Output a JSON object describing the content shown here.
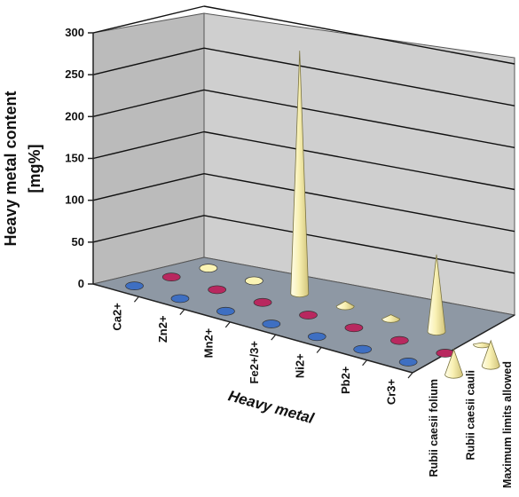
{
  "chart_data": {
    "type": "bar",
    "bar_shape": "cone-3d",
    "ylabel_line1": "Heavy metal content",
    "ylabel_line2": "[mg%]",
    "xlabel": "Heavy metal",
    "ylim": [
      0,
      300
    ],
    "yticks": [
      "0",
      "50",
      "100",
      "150",
      "200",
      "250",
      "300"
    ],
    "grid": true,
    "categories": [
      "Ca2+",
      "Zn2+",
      "Mn2+",
      "Fe2+/3+",
      "Ni2+",
      "Pb2+",
      "Cr3+"
    ],
    "series": [
      {
        "name": "Rubii caesii folium",
        "color": "#3e6fc2",
        "values": [
          0.5,
          0.5,
          0.5,
          0.5,
          0.5,
          0.5,
          0.5
        ]
      },
      {
        "name": "Rubii caesii cauli",
        "color": "#b8285f",
        "values": [
          0.5,
          0.5,
          0.5,
          0.5,
          0.5,
          0.5,
          0.5
        ]
      },
      {
        "name": "Maximum limits allowed",
        "color": "#fbf4b4",
        "values": [
          0,
          0,
          290,
          6,
          5,
          92,
          2
        ]
      }
    ],
    "extra_cones": [
      {
        "row": "Rubii caesii folium",
        "after_category": "Cr3+",
        "value": 30
      },
      {
        "row": "Rubii caesii cauli",
        "after_category": "Cr3+",
        "value": 30
      }
    ]
  }
}
